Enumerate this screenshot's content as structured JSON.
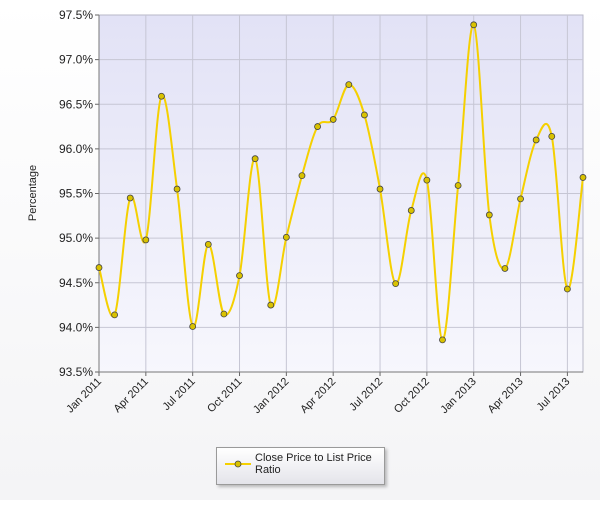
{
  "chart_data": {
    "type": "line",
    "ylabel": "Percentage",
    "xlabel": "",
    "ylim": [
      93.5,
      97.5
    ],
    "yticks": [
      "93.5%",
      "94.0%",
      "94.5%",
      "95.0%",
      "95.5%",
      "96.0%",
      "96.5%",
      "97.0%",
      "97.5%"
    ],
    "xticks": [
      "Jan 2011",
      "Apr 2011",
      "Jul 2011",
      "Oct 2011",
      "Jan 2012",
      "Apr 2012",
      "Jul 2012",
      "Oct 2012",
      "Jan 2013",
      "Apr 2013",
      "Jul 2013"
    ],
    "grid": true,
    "legend_position": "bottom-center",
    "series": [
      {
        "name": "Close Price to List Price Ratio",
        "color": "#f5d000",
        "x": [
          "Jan 2011",
          "Feb 2011",
          "Mar 2011",
          "Apr 2011",
          "May 2011",
          "Jun 2011",
          "Jul 2011",
          "Aug 2011",
          "Sep 2011",
          "Oct 2011",
          "Nov 2011",
          "Dec 2011",
          "Jan 2012",
          "Feb 2012",
          "Mar 2012",
          "Apr 2012",
          "May 2012",
          "Jun 2012",
          "Jul 2012",
          "Aug 2012",
          "Sep 2012",
          "Oct 2012",
          "Nov 2012",
          "Dec 2012",
          "Jan 2013",
          "Feb 2013",
          "Mar 2013",
          "Apr 2013",
          "May 2013",
          "Jun 2013",
          "Jul 2013",
          "Aug 2013"
        ],
        "values": [
          94.67,
          94.14,
          95.45,
          94.98,
          96.59,
          95.55,
          94.01,
          94.93,
          94.15,
          94.58,
          95.89,
          94.25,
          95.01,
          95.7,
          96.25,
          96.33,
          96.72,
          96.38,
          95.55,
          94.49,
          95.31,
          95.65,
          93.86,
          95.59,
          97.39,
          95.26,
          94.66,
          95.44,
          96.1,
          96.14,
          94.43,
          95.68
        ]
      }
    ]
  },
  "legend": {
    "label": "Close Price to List Price Ratio"
  }
}
